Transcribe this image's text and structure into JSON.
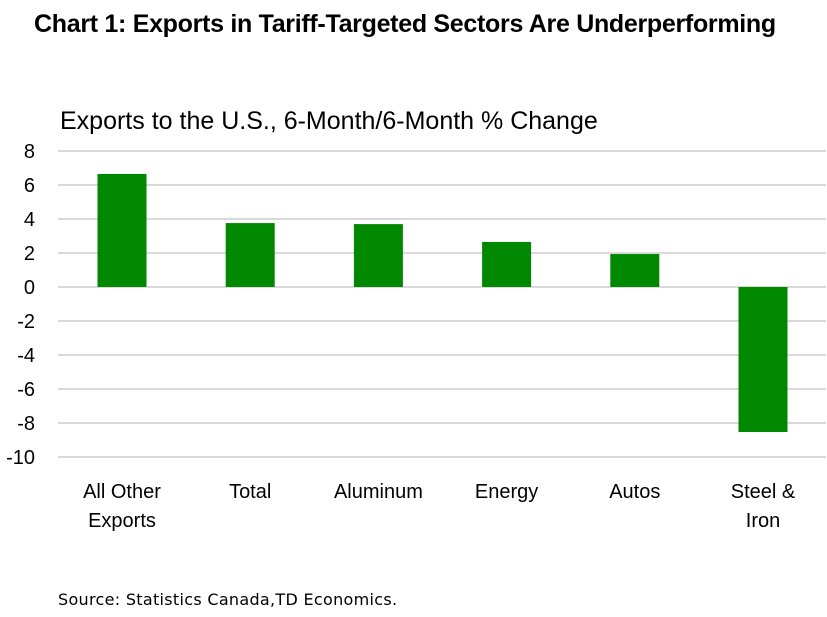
{
  "chart_data": {
    "type": "bar",
    "title": "Chart 1: Exports in Tariff-Targeted Sectors Are Underperforming",
    "subtitle": "Exports to the U.S., 6-Month/6-Month % Change",
    "xlabel": "",
    "ylabel": "",
    "categories": [
      [
        "All Other",
        "Exports"
      ],
      [
        "Total"
      ],
      [
        "Aluminum"
      ],
      [
        "Energy"
      ],
      [
        "Autos"
      ],
      [
        "Steel &",
        "Iron"
      ]
    ],
    "values": [
      6.65,
      3.76,
      3.7,
      2.65,
      1.94,
      -8.53
    ],
    "ylim": [
      -10,
      8
    ],
    "yticks": [
      8,
      6,
      4,
      2,
      0,
      -2,
      -4,
      -6,
      -8,
      -10
    ],
    "grid": true,
    "legend": "none",
    "bar_color": "#008800",
    "grid_color": "#d9d9d9",
    "source": "Source: Statistics Canada,TD Economics."
  }
}
